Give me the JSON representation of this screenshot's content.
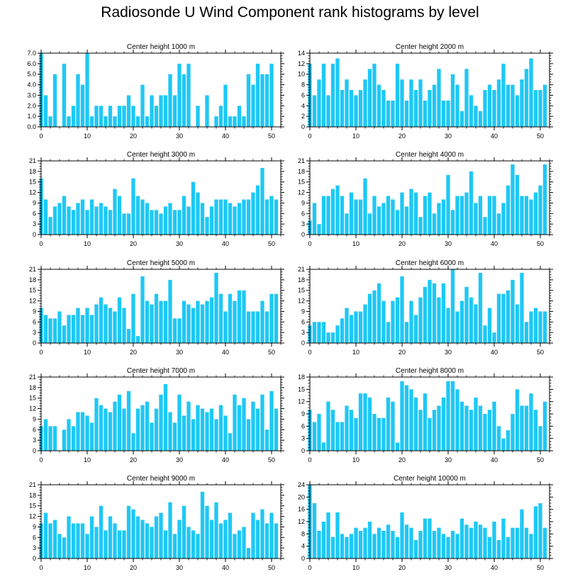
{
  "figure": {
    "title": "Radiosonde U Wind Component rank histograms by level",
    "bar_color": "#1ec8f5",
    "axis_color": "#000000"
  },
  "chart_data": [
    {
      "type": "bar",
      "title": "Center height 1000 m",
      "x": [
        0,
        1,
        2,
        3,
        4,
        5,
        6,
        7,
        8,
        9,
        10,
        11,
        12,
        13,
        14,
        15,
        16,
        17,
        18,
        19,
        20,
        21,
        22,
        23,
        24,
        25,
        26,
        27,
        28,
        29,
        30,
        31,
        32,
        33,
        34,
        35,
        36,
        37,
        38,
        39,
        40,
        41,
        42,
        43,
        44,
        45,
        46,
        47,
        48,
        49,
        50,
        51
      ],
      "values": [
        7,
        3,
        1,
        5,
        0,
        6,
        1,
        2,
        5,
        4,
        7,
        1,
        2,
        2,
        1,
        2,
        1,
        2,
        2,
        3,
        2,
        1,
        4,
        1,
        3,
        2,
        3,
        3,
        5,
        3,
        6,
        5,
        6,
        0,
        2,
        0,
        3,
        0,
        1,
        2,
        4,
        1,
        1,
        2,
        1,
        5,
        4,
        6,
        5,
        5,
        6,
        0
      ],
      "xlim": [
        0,
        52
      ],
      "ylim": [
        0,
        7
      ],
      "xticks": [
        0,
        10,
        20,
        30,
        40,
        50
      ],
      "yticks": [
        0,
        1,
        2,
        3,
        4,
        5,
        6,
        7
      ],
      "ytick_labels": [
        "0.0",
        "1.0",
        "2.0",
        "3.0",
        "4.0",
        "5.0",
        "6.0",
        "7.0"
      ]
    },
    {
      "type": "bar",
      "title": "Center height 2000 m",
      "x": [
        0,
        1,
        2,
        3,
        4,
        5,
        6,
        7,
        8,
        9,
        10,
        11,
        12,
        13,
        14,
        15,
        16,
        17,
        18,
        19,
        20,
        21,
        22,
        23,
        24,
        25,
        26,
        27,
        28,
        29,
        30,
        31,
        32,
        33,
        34,
        35,
        36,
        37,
        38,
        39,
        40,
        41,
        42,
        43,
        44,
        45,
        46,
        47,
        48,
        49,
        50,
        51
      ],
      "values": [
        12,
        6,
        9,
        12,
        6,
        12,
        13,
        7,
        9,
        7,
        6,
        7,
        9,
        11,
        12,
        8,
        7,
        5,
        5,
        12,
        9,
        5,
        9,
        7,
        9,
        5,
        7,
        8,
        11,
        5,
        5,
        10,
        8,
        3,
        11,
        6,
        4,
        3,
        7,
        8,
        7,
        9,
        12,
        8,
        8,
        6,
        9,
        11,
        13,
        7,
        7,
        8
      ],
      "xlim": [
        0,
        52
      ],
      "ylim": [
        0,
        14
      ],
      "xticks": [
        0,
        10,
        20,
        30,
        40,
        50
      ],
      "yticks": [
        0,
        2,
        4,
        6,
        8,
        10,
        12,
        14
      ],
      "ytick_labels": [
        "0",
        "2",
        "4",
        "6",
        "8",
        "10",
        "12",
        "14"
      ]
    },
    {
      "type": "bar",
      "title": "Center height 3000 m",
      "x": [
        0,
        1,
        2,
        3,
        4,
        5,
        6,
        7,
        8,
        9,
        10,
        11,
        12,
        13,
        14,
        15,
        16,
        17,
        18,
        19,
        20,
        21,
        22,
        23,
        24,
        25,
        26,
        27,
        28,
        29,
        30,
        31,
        32,
        33,
        34,
        35,
        36,
        37,
        38,
        39,
        40,
        41,
        42,
        43,
        44,
        45,
        46,
        47,
        48,
        49,
        50,
        51
      ],
      "values": [
        16,
        10,
        5,
        8,
        9,
        11,
        8,
        7,
        9,
        10,
        7,
        10,
        8,
        9,
        8,
        7,
        13,
        11,
        6,
        6,
        16,
        11,
        10,
        9,
        7,
        7,
        6,
        8,
        9,
        7,
        7,
        11,
        8,
        15,
        12,
        9,
        5,
        8,
        10,
        10,
        10,
        9,
        8,
        9,
        10,
        10,
        12,
        14,
        19,
        10,
        11,
        10
      ],
      "xlim": [
        0,
        52
      ],
      "ylim": [
        0,
        21
      ],
      "xticks": [
        0,
        10,
        20,
        30,
        40,
        50
      ],
      "yticks": [
        0,
        3,
        6,
        9,
        12,
        15,
        18,
        21
      ],
      "ytick_labels": [
        "0",
        "3",
        "6",
        "9",
        "12",
        "15",
        "18",
        "21"
      ]
    },
    {
      "type": "bar",
      "title": "Center height 4000 m",
      "x": [
        0,
        1,
        2,
        3,
        4,
        5,
        6,
        7,
        8,
        9,
        10,
        11,
        12,
        13,
        14,
        15,
        16,
        17,
        18,
        19,
        20,
        21,
        22,
        23,
        24,
        25,
        26,
        27,
        28,
        29,
        30,
        31,
        32,
        33,
        34,
        35,
        36,
        37,
        38,
        39,
        40,
        41,
        42,
        43,
        44,
        45,
        46,
        47,
        48,
        49,
        50,
        51
      ],
      "values": [
        4,
        9,
        3,
        11,
        11,
        13,
        14,
        11,
        6,
        12,
        10,
        10,
        16,
        6,
        11,
        8,
        9,
        11,
        10,
        7,
        12,
        8,
        13,
        12,
        5,
        11,
        12,
        6,
        9,
        10,
        17,
        7,
        11,
        11,
        12,
        18,
        9,
        11,
        5,
        11,
        11,
        6,
        9,
        14,
        20,
        17,
        11,
        11,
        10,
        12,
        14,
        20
      ],
      "xlim": [
        0,
        52
      ],
      "ylim": [
        0,
        21
      ],
      "xticks": [
        0,
        10,
        20,
        30,
        40,
        50
      ],
      "yticks": [
        0,
        3,
        6,
        9,
        12,
        15,
        18,
        21
      ],
      "ytick_labels": [
        "0",
        "3",
        "6",
        "9",
        "12",
        "15",
        "18",
        "21"
      ]
    },
    {
      "type": "bar",
      "title": "Center height 5000 m",
      "x": [
        0,
        1,
        2,
        3,
        4,
        5,
        6,
        7,
        8,
        9,
        10,
        11,
        12,
        13,
        14,
        15,
        16,
        17,
        18,
        19,
        20,
        21,
        22,
        23,
        24,
        25,
        26,
        27,
        28,
        29,
        30,
        31,
        32,
        33,
        34,
        35,
        36,
        37,
        38,
        39,
        40,
        41,
        42,
        43,
        44,
        45,
        46,
        47,
        48,
        49,
        50,
        51
      ],
      "values": [
        10,
        8,
        7,
        7,
        9,
        5,
        8,
        8,
        10,
        8,
        10,
        8,
        11,
        13,
        11,
        10,
        9,
        13,
        10,
        4,
        14,
        2,
        19,
        12,
        11,
        14,
        12,
        12,
        18,
        7,
        7,
        12,
        11,
        10,
        12,
        11,
        12,
        13,
        20,
        14,
        9,
        14,
        12,
        15,
        15,
        9,
        9,
        9,
        12,
        9,
        14,
        14
      ],
      "xlim": [
        0,
        52
      ],
      "ylim": [
        0,
        21
      ],
      "xticks": [
        0,
        10,
        20,
        30,
        40,
        50
      ],
      "yticks": [
        0,
        3,
        6,
        9,
        12,
        15,
        18,
        21
      ],
      "ytick_labels": [
        "0",
        "3",
        "6",
        "9",
        "12",
        "15",
        "18",
        "21"
      ]
    },
    {
      "type": "bar",
      "title": "Center height 6000 m",
      "x": [
        0,
        1,
        2,
        3,
        4,
        5,
        6,
        7,
        8,
        9,
        10,
        11,
        12,
        13,
        14,
        15,
        16,
        17,
        18,
        19,
        20,
        21,
        22,
        23,
        24,
        25,
        26,
        27,
        28,
        29,
        30,
        31,
        32,
        33,
        34,
        35,
        36,
        37,
        38,
        39,
        40,
        41,
        42,
        43,
        44,
        45,
        46,
        47,
        48,
        49,
        50,
        51
      ],
      "values": [
        5,
        6,
        6,
        6,
        3,
        3,
        5,
        7,
        10,
        8,
        9,
        9,
        11,
        14,
        15,
        17,
        12,
        6,
        12,
        13,
        19,
        6,
        12,
        8,
        13,
        16,
        18,
        17,
        13,
        17,
        10,
        21,
        9,
        12,
        16,
        13,
        11,
        20,
        5,
        10,
        3,
        14,
        14,
        15,
        18,
        11,
        20,
        6,
        9,
        10,
        9,
        9
      ],
      "xlim": [
        0,
        52
      ],
      "ylim": [
        0,
        21
      ],
      "xticks": [
        0,
        10,
        20,
        30,
        40,
        50
      ],
      "yticks": [
        0,
        3,
        6,
        9,
        12,
        15,
        18,
        21
      ],
      "ytick_labels": [
        "0",
        "3",
        "6",
        "9",
        "12",
        "15",
        "18",
        "21"
      ]
    },
    {
      "type": "bar",
      "title": "Center height 7000 m",
      "x": [
        0,
        1,
        2,
        3,
        4,
        5,
        6,
        7,
        8,
        9,
        10,
        11,
        12,
        13,
        14,
        15,
        16,
        17,
        18,
        19,
        20,
        21,
        22,
        23,
        24,
        25,
        26,
        27,
        28,
        29,
        30,
        31,
        32,
        33,
        34,
        35,
        36,
        37,
        38,
        39,
        40,
        41,
        42,
        43,
        44,
        45,
        46,
        47,
        48,
        49,
        50,
        51
      ],
      "values": [
        7,
        9,
        7,
        7,
        0,
        6,
        9,
        7,
        11,
        11,
        10,
        8,
        15,
        13,
        12,
        11,
        14,
        16,
        12,
        17,
        5,
        12,
        13,
        14,
        8,
        12,
        16,
        19,
        11,
        8,
        16,
        10,
        14,
        9,
        13,
        12,
        11,
        12,
        9,
        13,
        10,
        5,
        16,
        13,
        15,
        9,
        14,
        12,
        16,
        6,
        17,
        12
      ],
      "xlim": [
        0,
        52
      ],
      "ylim": [
        0,
        21
      ],
      "xticks": [
        0,
        10,
        20,
        30,
        40,
        50
      ],
      "yticks": [
        0,
        3,
        6,
        9,
        12,
        15,
        18,
        21
      ],
      "ytick_labels": [
        "0",
        "3",
        "6",
        "9",
        "12",
        "15",
        "18",
        "21"
      ]
    },
    {
      "type": "bar",
      "title": "Center height 8000 m",
      "x": [
        0,
        1,
        2,
        3,
        4,
        5,
        6,
        7,
        8,
        9,
        10,
        11,
        12,
        13,
        14,
        15,
        16,
        17,
        18,
        19,
        20,
        21,
        22,
        23,
        24,
        25,
        26,
        27,
        28,
        29,
        30,
        31,
        32,
        33,
        34,
        35,
        36,
        37,
        38,
        39,
        40,
        41,
        42,
        43,
        44,
        45,
        46,
        47,
        48,
        49,
        50,
        51
      ],
      "values": [
        10,
        7,
        9,
        2,
        12,
        10,
        7,
        7,
        11,
        10,
        8,
        14,
        14,
        13,
        9,
        8,
        8,
        13,
        12,
        2,
        17,
        16,
        15,
        13,
        10,
        14,
        8,
        10,
        11,
        13,
        17,
        17,
        15,
        12,
        11,
        10,
        13,
        11,
        9,
        10,
        12,
        6,
        3,
        5,
        9,
        15,
        11,
        11,
        14,
        10,
        6,
        12
      ],
      "xlim": [
        0,
        52
      ],
      "ylim": [
        0,
        18
      ],
      "xticks": [
        0,
        10,
        20,
        30,
        40,
        50
      ],
      "yticks": [
        0,
        3,
        6,
        9,
        12,
        15,
        18
      ],
      "ytick_labels": [
        "0",
        "3",
        "6",
        "9",
        "12",
        "15",
        "18"
      ]
    },
    {
      "type": "bar",
      "title": "Center height 9000 m",
      "x": [
        0,
        1,
        2,
        3,
        4,
        5,
        6,
        7,
        8,
        9,
        10,
        11,
        12,
        13,
        14,
        15,
        16,
        17,
        18,
        19,
        20,
        21,
        22,
        23,
        24,
        25,
        26,
        27,
        28,
        29,
        30,
        31,
        32,
        33,
        34,
        35,
        36,
        37,
        38,
        39,
        40,
        41,
        42,
        43,
        44,
        45,
        46,
        47,
        48,
        49,
        50,
        51
      ],
      "values": [
        10,
        13,
        10,
        11,
        7,
        6,
        12,
        10,
        10,
        10,
        7,
        12,
        9,
        15,
        8,
        12,
        10,
        8,
        8,
        15,
        14,
        12,
        11,
        10,
        9,
        12,
        13,
        8,
        16,
        7,
        11,
        15,
        9,
        8,
        7,
        19,
        15,
        11,
        16,
        10,
        11,
        13,
        7,
        8,
        9,
        3,
        13,
        11,
        14,
        10,
        13,
        10
      ],
      "xlim": [
        0,
        52
      ],
      "ylim": [
        0,
        21
      ],
      "xticks": [
        0,
        10,
        20,
        30,
        40,
        50
      ],
      "yticks": [
        0,
        3,
        6,
        9,
        12,
        15,
        18,
        21
      ],
      "ytick_labels": [
        "0",
        "3",
        "6",
        "9",
        "12",
        "15",
        "18",
        "21"
      ]
    },
    {
      "type": "bar",
      "title": "Center height 10000 m",
      "x": [
        0,
        1,
        2,
        3,
        4,
        5,
        6,
        7,
        8,
        9,
        10,
        11,
        12,
        13,
        14,
        15,
        16,
        17,
        18,
        19,
        20,
        21,
        22,
        23,
        24,
        25,
        26,
        27,
        28,
        29,
        30,
        31,
        32,
        33,
        34,
        35,
        36,
        37,
        38,
        39,
        40,
        41,
        42,
        43,
        44,
        45,
        46,
        47,
        48,
        49,
        50,
        51
      ],
      "values": [
        24,
        18,
        9,
        12,
        15,
        7,
        15,
        8,
        7,
        8,
        10,
        9,
        10,
        12,
        8,
        10,
        9,
        11,
        9,
        7,
        15,
        11,
        10,
        6,
        9,
        13,
        13,
        9,
        10,
        8,
        7,
        9,
        8,
        13,
        11,
        10,
        12,
        11,
        10,
        7,
        12,
        6,
        13,
        7,
        10,
        10,
        16,
        10,
        8,
        17,
        18,
        10
      ],
      "xlim": [
        0,
        52
      ],
      "ylim": [
        0,
        24
      ],
      "xticks": [
        0,
        10,
        20,
        30,
        40,
        50
      ],
      "yticks": [
        0,
        4,
        8,
        12,
        16,
        20,
        24
      ],
      "ytick_labels": [
        "0",
        "4",
        "8",
        "12",
        "16",
        "20",
        "24"
      ]
    }
  ]
}
